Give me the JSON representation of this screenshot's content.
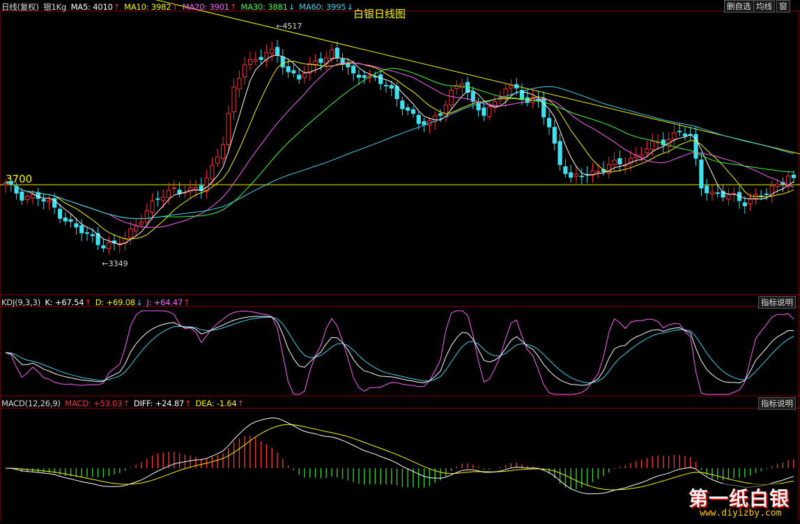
{
  "header": {
    "period": "日线(复权)",
    "symbol": "银1Kg",
    "ma": [
      {
        "label": "MA5: 4010",
        "arrow": "↑",
        "color": "#ffffff"
      },
      {
        "label": "MA10: 3982",
        "arrow": "↑",
        "color": "#f7f700"
      },
      {
        "label": "MA20: 3901",
        "arrow": "↑",
        "color": "#ff60ff"
      },
      {
        "label": "MA30: 3881",
        "arrow": "↓",
        "color": "#40ff40"
      },
      {
        "label": "MA60: 3995",
        "arrow": "↓",
        "color": "#40d0f0"
      }
    ]
  },
  "title": "白银日线图",
  "buttons": {
    "delete_watch": "删自选",
    "avg_line": "均线",
    "window": "窗"
  },
  "price_panel": {
    "horizontal_line_label": "3700",
    "high_label": "4517",
    "low_label": "3349"
  },
  "kdj": {
    "name": "KDJ(9,3,3)",
    "k": {
      "label": "K: +67.54",
      "arrow": "↑",
      "color": "#ffffff"
    },
    "d": {
      "label": "D: +69.08",
      "arrow": "↓",
      "color": "#f7f700"
    },
    "j": {
      "label": "J: +64.47",
      "arrow": "↑",
      "color": "#ff60ff"
    },
    "help": "指标说明"
  },
  "macd": {
    "name": "MACD(12,26,9)",
    "macd": {
      "label": "MACD: +53.03",
      "arrow": "↑",
      "color": "#ff3030"
    },
    "diff": {
      "label": "DIFF: +24.87",
      "arrow": "↑",
      "color": "#ffffff"
    },
    "dea": {
      "label": "DEA: -1.64",
      "arrow": "↑",
      "color": "#f7f700"
    },
    "help": "指标说明"
  },
  "watermark": {
    "brand": "第一纸白银",
    "url": "www.diyizby.com"
  },
  "colors": {
    "up": "#ff3030",
    "down": "#40e0f0",
    "grid": "#900000",
    "trend": "#f7f700"
  },
  "chart_data": [
    {
      "type": "candlestick",
      "title": "白银日线图",
      "x_index_range": [
        0,
        145
      ],
      "ylim": [
        3100,
        4650
      ],
      "reference_line": 3700,
      "trendline": [
        {
          "i": 42,
          "v": 4625
        },
        {
          "i": 145,
          "v": 3880
        }
      ],
      "closes_keypoints": [
        [
          0,
          3700
        ],
        [
          3,
          3640
        ],
        [
          6,
          3630
        ],
        [
          9,
          3570
        ],
        [
          12,
          3480
        ],
        [
          15,
          3420
        ],
        [
          18,
          3370
        ],
        [
          20,
          3360
        ],
        [
          22,
          3400
        ],
        [
          25,
          3520
        ],
        [
          28,
          3620
        ],
        [
          31,
          3680
        ],
        [
          34,
          3660
        ],
        [
          36,
          3680
        ],
        [
          38,
          3800
        ],
        [
          40,
          3940
        ],
        [
          42,
          4220
        ],
        [
          44,
          4380
        ],
        [
          46,
          4400
        ],
        [
          48,
          4430
        ],
        [
          50,
          4420
        ],
        [
          52,
          4330
        ],
        [
          54,
          4300
        ],
        [
          56,
          4350
        ],
        [
          58,
          4400
        ],
        [
          60,
          4440
        ],
        [
          62,
          4380
        ],
        [
          64,
          4300
        ],
        [
          66,
          4320
        ],
        [
          68,
          4290
        ],
        [
          70,
          4250
        ],
        [
          72,
          4180
        ],
        [
          74,
          4120
        ],
        [
          76,
          4040
        ],
        [
          78,
          4040
        ],
        [
          80,
          4110
        ],
        [
          82,
          4210
        ],
        [
          84,
          4270
        ],
        [
          86,
          4150
        ],
        [
          88,
          4110
        ],
        [
          90,
          4140
        ],
        [
          92,
          4240
        ],
        [
          94,
          4240
        ],
        [
          96,
          4160
        ],
        [
          98,
          4160
        ],
        [
          100,
          4020
        ],
        [
          102,
          3830
        ],
        [
          104,
          3720
        ],
        [
          106,
          3760
        ],
        [
          108,
          3770
        ],
        [
          110,
          3790
        ],
        [
          112,
          3810
        ],
        [
          114,
          3830
        ],
        [
          116,
          3860
        ],
        [
          118,
          3900
        ],
        [
          120,
          3930
        ],
        [
          122,
          3960
        ],
        [
          124,
          4000
        ],
        [
          126,
          3960
        ],
        [
          128,
          3700
        ],
        [
          130,
          3650
        ],
        [
          132,
          3640
        ],
        [
          134,
          3630
        ],
        [
          136,
          3610
        ],
        [
          138,
          3630
        ],
        [
          140,
          3650
        ],
        [
          142,
          3700
        ],
        [
          144,
          3760
        ],
        [
          145,
          3720
        ]
      ]
    },
    {
      "type": "line",
      "title": "KDJ(9,3,3)",
      "ylim": [
        0,
        100
      ],
      "series": [
        {
          "name": "K",
          "values_end": 67.54
        },
        {
          "name": "D",
          "values_end": 69.08
        },
        {
          "name": "J",
          "values_end": 64.47
        }
      ]
    },
    {
      "type": "bar",
      "title": "MACD(12,26,9)",
      "series": [
        {
          "name": "MACD",
          "values_end": 53.03
        },
        {
          "name": "DIFF",
          "values_end": 24.87
        },
        {
          "name": "DEA",
          "values_end": -1.64
        }
      ]
    }
  ]
}
